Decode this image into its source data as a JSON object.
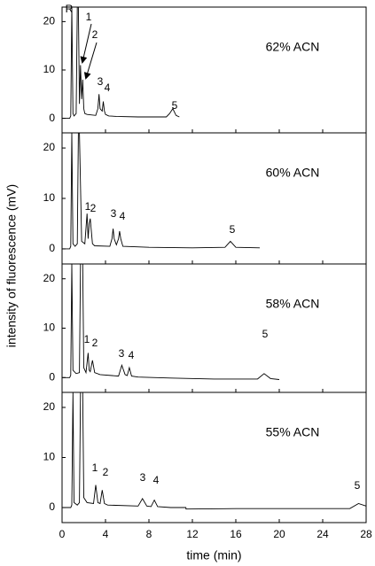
{
  "chart_data": [
    {
      "type": "line",
      "label": "62% ACN",
      "ylabel": "intensity of fluorescence (mV)",
      "color": "#000000",
      "peak_labels": [
        "R",
        "1",
        "2",
        "3",
        "4",
        "5"
      ],
      "arrows": true,
      "x": [
        0,
        0.7,
        0.8,
        0.9,
        1.0,
        1.1,
        1.3,
        1.4,
        1.5,
        1.6,
        1.7,
        1.8,
        1.9,
        2.0,
        2.1,
        2.3,
        3.1,
        3.3,
        3.4,
        3.5,
        3.7,
        3.8,
        3.9,
        4.0,
        4.3,
        5,
        7,
        9.6,
        9.9,
        10.2,
        10.5,
        10.8
      ],
      "values": [
        0,
        0,
        0.5,
        23,
        1,
        0.5,
        1,
        23,
        23,
        3,
        11,
        4,
        8,
        2,
        1,
        0.8,
        0.6,
        2,
        5,
        2,
        1.5,
        3.5,
        1.5,
        0.8,
        0.5,
        0.4,
        0.3,
        0.3,
        1,
        2,
        0.6,
        0.3
      ],
      "xlim": [
        0,
        28
      ],
      "xticks": [
        0,
        4,
        8,
        12,
        16,
        20,
        24,
        28
      ],
      "show_xtick_labels": false,
      "ylim": [
        -3,
        23
      ],
      "yticks": [
        0,
        10,
        20
      ]
    },
    {
      "type": "line",
      "label": "60% ACN",
      "color": "#000000",
      "peak_labels": [
        "1",
        "2",
        "3",
        "4",
        "5"
      ],
      "arrows": false,
      "x": [
        0,
        0.7,
        0.8,
        0.9,
        1.0,
        1.2,
        1.4,
        1.5,
        1.6,
        1.8,
        2.1,
        2.3,
        2.4,
        2.5,
        2.6,
        2.8,
        3.0,
        4.4,
        4.6,
        4.7,
        4.8,
        5.0,
        5.2,
        5.3,
        5.4,
        5.6,
        8,
        12,
        15.0,
        15.5,
        16.0,
        18.2
      ],
      "values": [
        0,
        0,
        0.5,
        23,
        1,
        0.5,
        1,
        23,
        23,
        1.5,
        1,
        7,
        2,
        5,
        6,
        1,
        0.6,
        0.5,
        2,
        4,
        2,
        0.8,
        2,
        3.5,
        2,
        0.5,
        0.3,
        0.2,
        0.3,
        1.5,
        0.3,
        0.2
      ],
      "xlim": [
        0,
        28
      ],
      "xticks": [
        0,
        4,
        8,
        12,
        16,
        20,
        24,
        28
      ],
      "show_xtick_labels": false,
      "ylim": [
        -3,
        23
      ],
      "yticks": [
        0,
        10,
        20
      ]
    },
    {
      "type": "line",
      "label": "58% ACN",
      "color": "#000000",
      "peak_labels": [
        "1",
        "2",
        "3",
        "4",
        "5"
      ],
      "arrows": false,
      "x": [
        0,
        0.7,
        0.8,
        0.9,
        1.0,
        1.3,
        1.6,
        1.7,
        1.8,
        1.9,
        2.0,
        2.2,
        2.4,
        2.5,
        2.6,
        2.8,
        3.0,
        3.5,
        5.2,
        5.5,
        5.8,
        6.0,
        6.2,
        6.4,
        7,
        10,
        14,
        18.0,
        18.6,
        19.2,
        20
      ],
      "values": [
        0,
        0,
        0.5,
        23,
        1.5,
        0.8,
        1,
        23,
        23,
        23,
        2,
        1,
        5,
        1.5,
        1.2,
        3.5,
        1,
        0.6,
        0.3,
        2.5,
        0.6,
        0.4,
        2,
        0.3,
        0.1,
        -0.1,
        -0.3,
        -0.3,
        0.8,
        -0.2,
        -0.4
      ],
      "xlim": [
        0,
        28
      ],
      "xticks": [
        0,
        4,
        8,
        12,
        16,
        20,
        24,
        28
      ],
      "show_xtick_labels": false,
      "ylim": [
        -3,
        23
      ],
      "yticks": [
        0,
        10,
        20
      ]
    },
    {
      "type": "line",
      "label": "55% ACN",
      "xlabel": "time (min)",
      "color": "#000000",
      "peak_labels": [
        "1",
        "2",
        "3",
        "4",
        "5"
      ],
      "arrows": false,
      "x": [
        0,
        0.8,
        0.9,
        1.0,
        1.1,
        1.4,
        1.6,
        1.7,
        1.8,
        1.9,
        2.0,
        2.3,
        2.9,
        3.1,
        3.3,
        3.5,
        3.7,
        3.9,
        4.2,
        7.0,
        7.4,
        7.8,
        8.2,
        8.5,
        8.8,
        10,
        11.4,
        11.41,
        16,
        22,
        26.5,
        27.3,
        28
      ],
      "values": [
        0,
        0,
        0.5,
        23,
        1,
        0.5,
        1,
        23,
        23,
        23,
        2,
        1,
        0.8,
        4.5,
        1,
        0.8,
        3.5,
        0.8,
        0.5,
        0.3,
        1.8,
        0.3,
        0.2,
        1.5,
        0.2,
        0,
        0,
        -0.3,
        -0.2,
        -0.2,
        -0.2,
        0.8,
        0.3
      ],
      "xlim": [
        0,
        28
      ],
      "xticks": [
        0,
        4,
        8,
        12,
        16,
        20,
        24,
        28
      ],
      "show_xtick_labels": true,
      "ylim": [
        -3,
        23
      ],
      "yticks": [
        0,
        10,
        20
      ]
    }
  ]
}
